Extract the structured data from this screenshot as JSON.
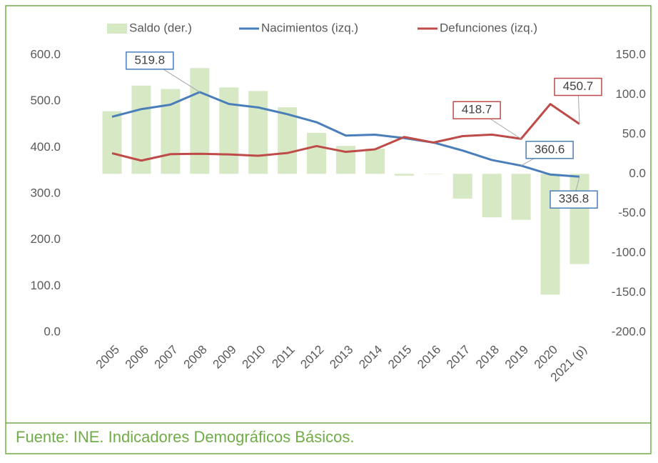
{
  "chart_data": {
    "type": "bar-line",
    "source": "Fuente: INE. Indicadores Demográficos Básicos.",
    "categories": [
      "2005",
      "2006",
      "2007",
      "2008",
      "2009",
      "2010",
      "2011",
      "2012",
      "2013",
      "2014",
      "2015",
      "2016",
      "2017",
      "2018",
      "2019",
      "2020",
      "2021 (p)"
    ],
    "series": [
      {
        "name": "Saldo (der.)",
        "type": "bar",
        "axis": "y2",
        "color": "#d7e8c4",
        "values": [
          79.0,
          111.4,
          107.1,
          133.5,
          109.1,
          104.6,
          84.0,
          51.7,
          35.3,
          31.8,
          -2.3,
          0.0,
          -31.3,
          -54.9,
          -58.1,
          -152.5,
          -113.9
        ]
      },
      {
        "name": "Nacimientos (izq.)",
        "type": "line",
        "color": "#4a7ebb",
        "values": [
          466.4,
          482.9,
          492.5,
          519.8,
          494.0,
          486.6,
          471.9,
          454.6,
          425.7,
          427.6,
          420.3,
          410.6,
          393.2,
          372.8,
          360.6,
          341.3,
          336.8
        ],
        "value_labels": [
          null,
          null,
          null,
          "519.8",
          null,
          null,
          null,
          null,
          null,
          null,
          null,
          null,
          null,
          null,
          "360.6",
          null,
          "336.8"
        ]
      },
      {
        "name": "Defunciones (izq.)",
        "type": "line",
        "color": "#be4b48",
        "values": [
          387.4,
          371.5,
          385.4,
          386.3,
          384.9,
          382.0,
          387.9,
          402.9,
          390.4,
          395.8,
          422.6,
          410.6,
          424.5,
          427.7,
          418.7,
          493.8,
          450.7
        ],
        "value_labels": [
          null,
          null,
          null,
          null,
          null,
          null,
          null,
          null,
          null,
          null,
          null,
          null,
          null,
          null,
          "418.7",
          null,
          "450.7"
        ]
      }
    ],
    "ylim": [
      0,
      600
    ],
    "yticks": [
      {
        "value": 0,
        "label": "0.0"
      },
      {
        "value": 100,
        "label": "100.0"
      },
      {
        "value": 200,
        "label": "200.0"
      },
      {
        "value": 300,
        "label": "300.0"
      },
      {
        "value": 400,
        "label": "400.0"
      },
      {
        "value": 500,
        "label": "500.0"
      },
      {
        "value": 600,
        "label": "600.0"
      }
    ],
    "y2lim": [
      -200,
      150
    ],
    "y2ticks": [
      {
        "value": -200,
        "label": "-200.0"
      },
      {
        "value": -150,
        "label": "-150.0"
      },
      {
        "value": -100,
        "label": "-100.0"
      },
      {
        "value": -50,
        "label": "-50.0"
      },
      {
        "value": 0,
        "label": "0.0"
      },
      {
        "value": 50,
        "label": "50.0"
      },
      {
        "value": 100,
        "label": "100.0"
      },
      {
        "value": 150,
        "label": "150.0"
      }
    ],
    "legend": "top"
  }
}
